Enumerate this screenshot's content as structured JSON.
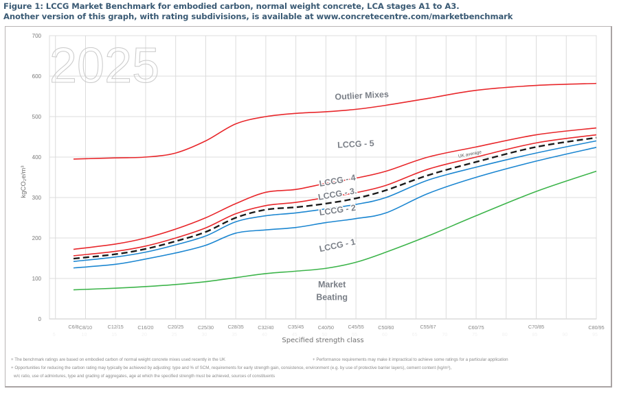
{
  "title": {
    "line1": "Figure 1: LCCG Market Benchmark for embodied carbon, normal weight concrete, LCA stages A1 to A3.",
    "line2": "Another version of this graph, with rating subdivisions, is available at www.concretecentre.com/marketbenchmark"
  },
  "footnotes": {
    "note1": "+ The benchmark ratings are based on embodied carbon of normal weight concrete mixes used recently in the UK",
    "note2": "+ Performance requirements may make it impractical to achieve some ratings for a particular application",
    "note3a": "+ Opportunities for reducing the carbon rating may typically be achieved by adjusting: type and % of SCM, requirements for early strength gain, consistence, environment (e.g. by use of protective barrier layers), cement content (kg/m³),",
    "note3b": "w/c ratio, use of admixtures, type and grading of aggregates, age at which the specified strength must be achieved, sources of constituents"
  },
  "colors": {
    "red": "#e8262a",
    "blue": "#1b86d1",
    "green": "#3cb44a",
    "black": "#1a1a1a",
    "grid": "#dcdcdc",
    "label": "#7a7f87"
  },
  "chart_data": {
    "type": "line",
    "title": "LCCG Market Benchmark for embodied carbon, normal weight concrete, LCA stages A1 to A3",
    "watermark": "2025",
    "xlabel": "Specified strength class",
    "ylabel": "kgCO₂e/m³",
    "ylim": [
      0,
      700
    ],
    "yticks": [
      0,
      100,
      200,
      300,
      400,
      500,
      600,
      700
    ],
    "xlim_cube_strength": [
      4,
      95
    ],
    "x_grid_cube_strength": [
      5,
      10,
      15,
      20,
      25,
      30,
      35,
      40,
      45,
      50,
      55,
      60,
      65,
      70,
      75,
      80,
      85,
      90,
      95
    ],
    "x_faint_ticks": [
      "5",
      "10",
      "15",
      "20",
      "25",
      "30",
      "35",
      "40",
      "45",
      "50",
      "55",
      "60",
      "65",
      "70",
      "75",
      "80",
      "85",
      "90",
      "95"
    ],
    "grid": true,
    "categories": [
      {
        "label": "C6/8",
        "cube": 8
      },
      {
        "label": "C8/10",
        "cube": 10
      },
      {
        "label": "C12/15",
        "cube": 15
      },
      {
        "label": "C16/20",
        "cube": 20
      },
      {
        "label": "C20/25",
        "cube": 25
      },
      {
        "label": "C25/30",
        "cube": 30
      },
      {
        "label": "C28/35",
        "cube": 35
      },
      {
        "label": "C32/40",
        "cube": 40
      },
      {
        "label": "C35/45",
        "cube": 45
      },
      {
        "label": "C40/50",
        "cube": 50
      },
      {
        "label": "C45/55",
        "cube": 55
      },
      {
        "label": "C50/60",
        "cube": 60
      },
      {
        "label": "C55/67",
        "cube": 67
      },
      {
        "label": "C60/75",
        "cube": 75
      },
      {
        "label": "C70/85",
        "cube": 85
      },
      {
        "label": "C80/95",
        "cube": 95
      }
    ],
    "x": [
      8,
      15,
      20,
      25,
      30,
      35,
      40,
      45,
      50,
      55,
      60,
      67,
      75,
      85,
      95
    ],
    "series": [
      {
        "name": "Outlier Mixes boundary (LCCG-5 upper)",
        "color": "red",
        "dashed": false,
        "values": [
          395,
          398,
          400,
          410,
          440,
          482,
          500,
          508,
          512,
          518,
          528,
          545,
          565,
          577,
          582
        ]
      },
      {
        "name": "LCCG-4 upper boundary",
        "color": "red",
        "dashed": false,
        "values": [
          172,
          185,
          200,
          222,
          250,
          285,
          313,
          320,
          335,
          348,
          365,
          400,
          425,
          455,
          472
        ]
      },
      {
        "name": "LCCG-3 upper boundary",
        "color": "red",
        "dashed": false,
        "values": [
          156,
          167,
          180,
          200,
          225,
          260,
          280,
          288,
          300,
          312,
          330,
          370,
          400,
          435,
          455
        ]
      },
      {
        "name": "UK average",
        "color": "black",
        "dashed": true,
        "values": [
          149,
          160,
          173,
          192,
          215,
          250,
          270,
          276,
          285,
          298,
          318,
          355,
          388,
          425,
          448
        ]
      },
      {
        "name": "LCCG-2 upper boundary",
        "color": "blue",
        "dashed": false,
        "values": [
          142,
          153,
          165,
          183,
          205,
          240,
          255,
          262,
          272,
          283,
          300,
          343,
          375,
          410,
          440
        ]
      },
      {
        "name": "LCCG-1 upper boundary",
        "color": "blue",
        "dashed": false,
        "values": [
          126,
          135,
          148,
          163,
          182,
          212,
          220,
          226,
          238,
          248,
          262,
          310,
          350,
          390,
          424
        ]
      },
      {
        "name": "Market Beating boundary",
        "color": "green",
        "dashed": false,
        "values": [
          72,
          76,
          80,
          85,
          92,
          102,
          112,
          118,
          125,
          140,
          165,
          205,
          255,
          315,
          365
        ]
      }
    ],
    "annotations": [
      {
        "text": "Outlier Mixes",
        "cube": 56,
        "value": 545,
        "rotate": -3
      },
      {
        "text": "LCCG - 5",
        "cube": 55,
        "value": 425,
        "rotate": -3
      },
      {
        "text": "LCCG - 4",
        "cube": 52,
        "value": 335,
        "rotate": -10
      },
      {
        "text": "LCCG - 3.",
        "cube": 52,
        "value": 302,
        "rotate": -10
      },
      {
        "text": "LCCG - 2",
        "cube": 52,
        "value": 262,
        "rotate": -8
      },
      {
        "text": "LCCG - 1",
        "cube": 52,
        "value": 175,
        "rotate": -12
      },
      {
        "text": "Market",
        "cube": 51,
        "value": 78,
        "rotate": 0
      },
      {
        "text": "Beating",
        "cube": 51,
        "value": 47,
        "rotate": 0
      },
      {
        "text": "UK average",
        "cube": 74,
        "value": 404,
        "rotate": -11,
        "small": true
      }
    ],
    "legend": "none (inline labels)"
  }
}
